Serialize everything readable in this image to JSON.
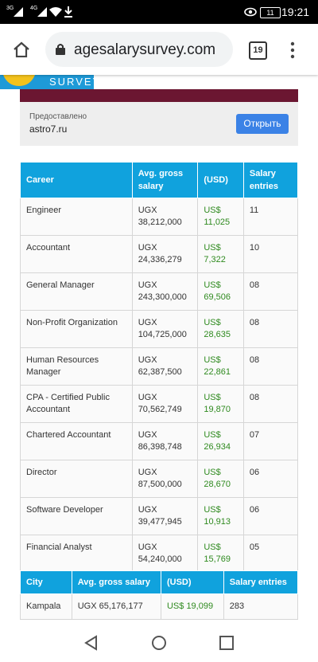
{
  "status_bar": {
    "network_1": "3G",
    "network_2": "4G",
    "battery": "11",
    "time": "19:21"
  },
  "browser": {
    "url": "agesalarysurvey.com",
    "tab_count": "19"
  },
  "site_header": {
    "logo_text": "SURVEY"
  },
  "ad": {
    "provided_by": "Предоставлено",
    "domain": "astro7.ru",
    "button": "Открыть"
  },
  "career_table": {
    "headers": [
      "Career",
      "Avg. gross salary",
      "(USD)",
      "Salary entries"
    ],
    "rows": [
      [
        "Engineer",
        "UGX 38,212,000",
        "US$ 11,025",
        "11"
      ],
      [
        "Accountant",
        "UGX 24,336,279",
        "US$ 7,322",
        "10"
      ],
      [
        "General Manager",
        "UGX 243,300,000",
        "US$ 69,506",
        "08"
      ],
      [
        "Non-Profit Organization",
        "UGX 104,725,000",
        "US$ 28,635",
        "08"
      ],
      [
        "Human Resources Manager",
        "UGX 62,387,500",
        "US$ 22,861",
        "08"
      ],
      [
        "CPA - Certified Public Accountant",
        "UGX 70,562,749",
        "US$ 19,870",
        "08"
      ],
      [
        "Chartered Accountant",
        "UGX 86,398,748",
        "US$ 26,934",
        "07"
      ],
      [
        "Director",
        "UGX 87,500,000",
        "US$ 28,670",
        "06"
      ],
      [
        "Software Developer",
        "UGX 39,477,945",
        "US$ 10,913",
        "06"
      ],
      [
        "Financial Analyst",
        "UGX 54,240,000",
        "US$ 15,769",
        "05"
      ]
    ]
  },
  "city_table": {
    "headers": [
      "City",
      "Avg. gross salary",
      "(USD)",
      "Salary entries"
    ],
    "rows": [
      [
        "Kampala",
        "UGX 65,176,177",
        "US$ 19,099",
        "283"
      ]
    ]
  }
}
